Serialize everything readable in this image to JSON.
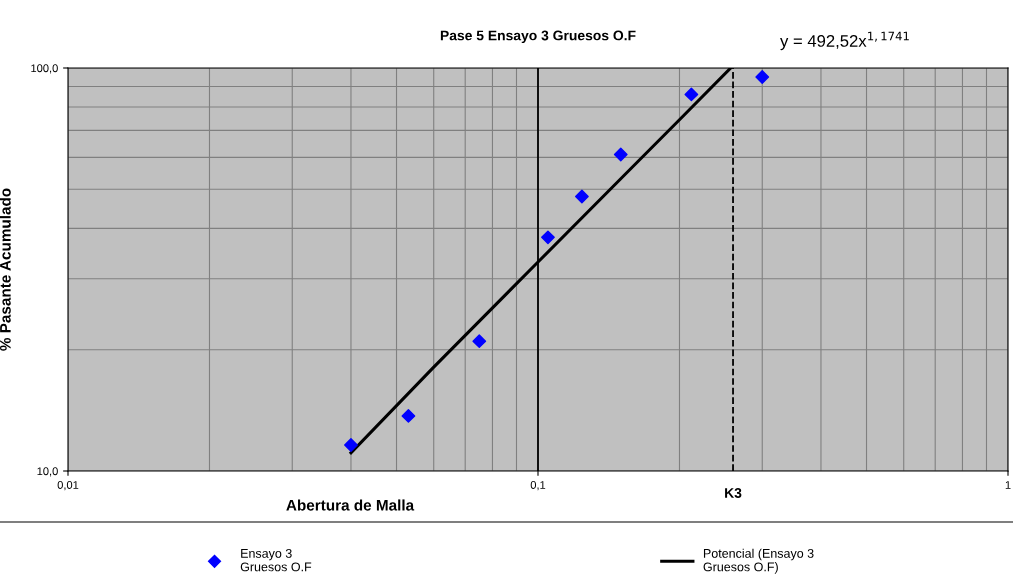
{
  "chart_data": {
    "type": "scatter",
    "title": "Pase 5 Ensayo 3 Gruesos O.F",
    "xlabel": "Abertura de Malla",
    "ylabel": "% Pasante Acumulado",
    "log": "xy",
    "xlim": [
      0.01,
      1
    ],
    "ylim": [
      10,
      100
    ],
    "xticks": [
      {
        "value": 0.01,
        "label": "0,01"
      },
      {
        "value": 0.1,
        "label": "0,1"
      },
      {
        "value": 1,
        "label": "1"
      }
    ],
    "yticks": [
      {
        "value": 10,
        "label": "10,0"
      },
      {
        "value": 100,
        "label": "100,0"
      }
    ],
    "grid": true,
    "legend": "bottom",
    "marker": "diamond",
    "series": [
      {
        "name": "Ensayo 3\nGruesos O.F",
        "color": "#0000ff",
        "x": [
          0.04,
          0.053,
          0.075,
          0.105,
          0.124,
          0.15,
          0.212,
          0.3
        ],
        "values": [
          11.6,
          13.7,
          21,
          38,
          48,
          61,
          86,
          95
        ]
      },
      {
        "name": "Potencial (Ensayo 3\nGruesos O.F)",
        "type": "line",
        "color": "#000000",
        "marker": "none",
        "line_style": "solid",
        "x": [
          0.04,
          0.06,
          0.1,
          0.15,
          0.2,
          0.257
        ],
        "values": [
          11.1,
          18.1,
          33,
          53.1,
          74.4,
          100
        ]
      }
    ],
    "ref_lines": [
      {
        "axis": "x",
        "value": 0.26,
        "label": "K3",
        "line_style": "dashed",
        "color": "#000000"
      },
      {
        "axis": "x",
        "value": 0.1,
        "line_style": "solid",
        "color": "#000000"
      }
    ],
    "annotations": [
      "y = 492,52x$^{1,1741}$"
    ]
  }
}
